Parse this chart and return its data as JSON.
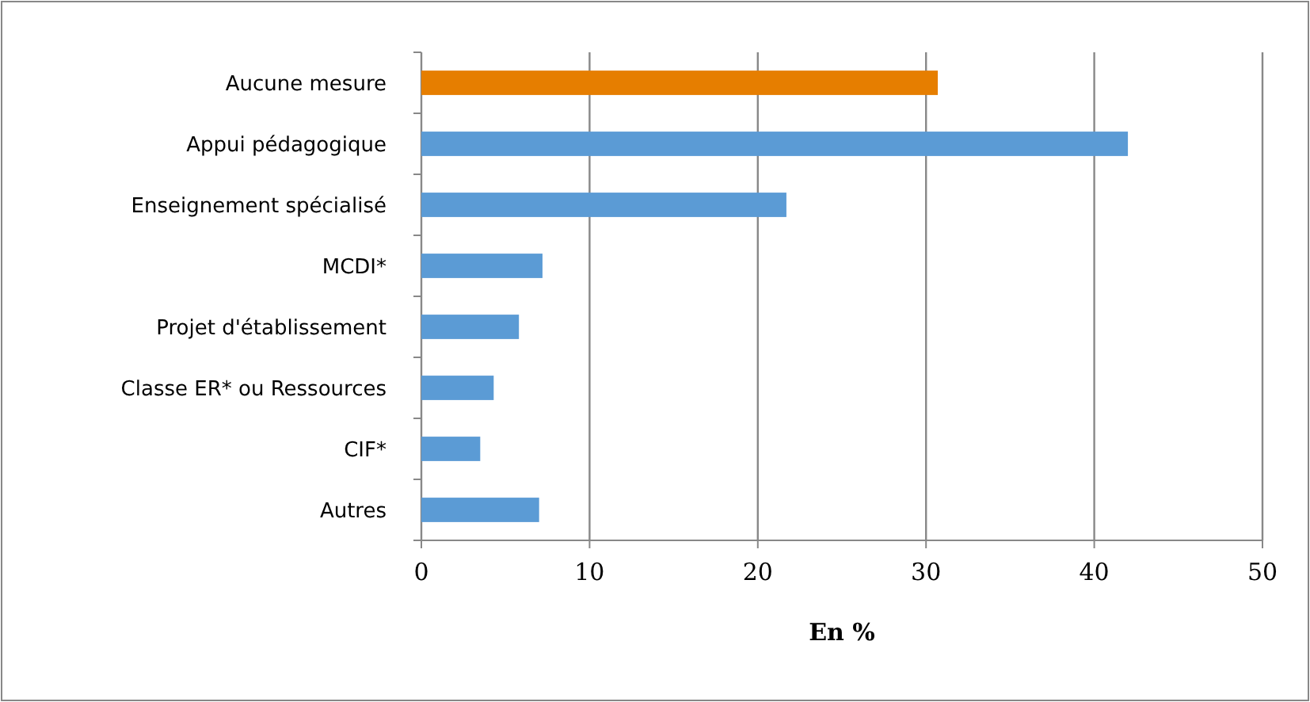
{
  "chart_data": {
    "type": "bar",
    "orientation": "horizontal",
    "xlabel": "En %",
    "categories": [
      "Aucune mesure",
      "Appui pédagogique",
      "Enseignement spécialisé",
      "MCDI*",
      "Projet d'établissement",
      "Classe ER* ou Ressources",
      "CIF*",
      "Autres"
    ],
    "values": [
      30.7,
      42.0,
      21.7,
      7.2,
      5.8,
      4.3,
      3.5,
      7.0
    ],
    "colors": [
      "#e67e00",
      "#5b9bd5",
      "#5b9bd5",
      "#5b9bd5",
      "#5b9bd5",
      "#5b9bd5",
      "#5b9bd5",
      "#5b9bd5"
    ],
    "xlim": [
      0,
      50
    ],
    "xticks": [
      0,
      10,
      20,
      30,
      40,
      50
    ],
    "grid": "x"
  }
}
